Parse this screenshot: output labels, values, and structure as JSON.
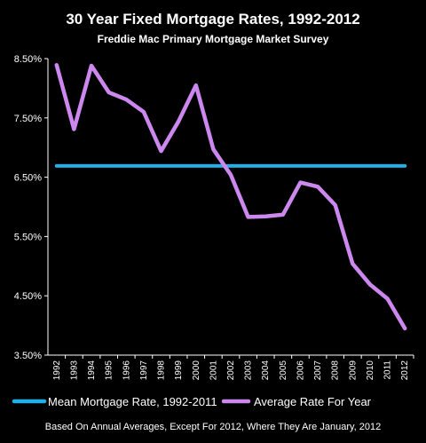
{
  "chart_data": {
    "type": "line",
    "title": "30 Year Fixed Mortgage Rates, 1992-2012",
    "subtitle": "Freddie Mac Primary Mortgage Market Survey",
    "footnote": "Based On Annual Averages, Except For 2012, Where They Are January, 2012",
    "categories": [
      "1992",
      "1993",
      "1994",
      "1995",
      "1996",
      "1997",
      "1998",
      "1999",
      "2000",
      "2001",
      "2002",
      "2003",
      "2004",
      "2005",
      "2006",
      "2007",
      "2008",
      "2009",
      "2010",
      "2011",
      "2012"
    ],
    "yticks": [
      "3.50%",
      "4.50%",
      "5.50%",
      "6.50%",
      "7.50%",
      "8.50%"
    ],
    "ylim": [
      3.5,
      8.5
    ],
    "grid": false,
    "legend_position": "bottom",
    "series": [
      {
        "name": "Mean Mortgage Rate, 1992-2011",
        "color": "#1fb0e8",
        "values": [
          6.69,
          6.69,
          6.69,
          6.69,
          6.69,
          6.69,
          6.69,
          6.69,
          6.69,
          6.69,
          6.69,
          6.69,
          6.69,
          6.69,
          6.69,
          6.69,
          6.69,
          6.69,
          6.69,
          6.69,
          6.69
        ]
      },
      {
        "name": "Average Rate For Year",
        "color": "#cc88ee",
        "values": [
          8.39,
          7.31,
          8.38,
          7.93,
          7.81,
          7.6,
          6.94,
          7.44,
          8.05,
          6.97,
          6.54,
          5.83,
          5.84,
          5.87,
          6.41,
          6.34,
          6.03,
          5.04,
          4.69,
          4.45,
          3.95
        ]
      }
    ]
  }
}
